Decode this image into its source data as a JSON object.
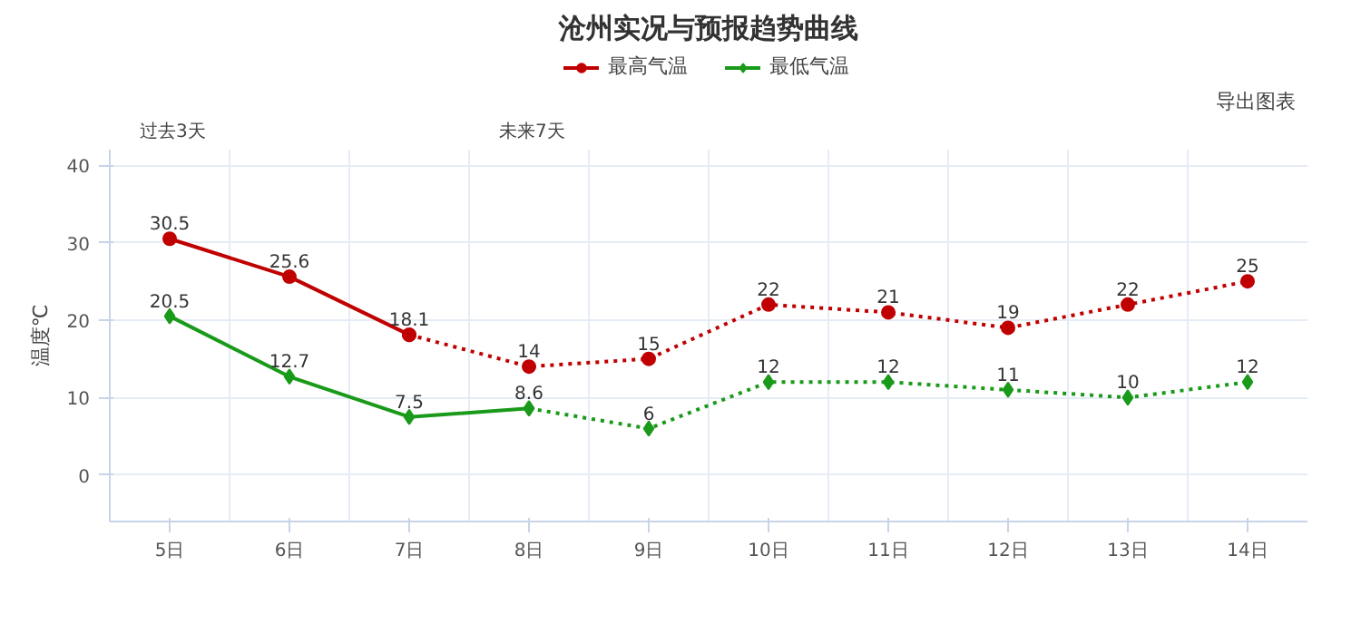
{
  "chart_data": {
    "type": "line",
    "title": "沧州实况与预报趋势曲线",
    "ylabel": "温度℃",
    "categories": [
      "5日",
      "6日",
      "7日",
      "8日",
      "9日",
      "10日",
      "11日",
      "12日",
      "13日",
      "14日"
    ],
    "series": [
      {
        "name": "最高气温",
        "color": "#c00000",
        "marker": "circle",
        "line_style": "solid",
        "values": [
          30.5,
          25.6,
          18.1,
          null,
          null,
          null,
          null,
          null,
          null,
          null
        ]
      },
      {
        "color": "#c00000",
        "marker": "circle",
        "line_style": "dotted",
        "values": [
          null,
          null,
          18.1,
          14,
          15,
          22,
          21,
          19,
          22,
          25
        ],
        "value_labels": [
          null,
          null,
          null,
          "14",
          "15",
          "22",
          "21",
          "19",
          "22",
          "25"
        ]
      },
      {
        "name": "最低气温",
        "color": "#1a9a1a",
        "marker": "diamond",
        "line_style": "solid",
        "values": [
          20.5,
          12.7,
          7.5,
          8.6,
          null,
          null,
          null,
          null,
          null,
          null
        ]
      },
      {
        "color": "#1a9a1a",
        "marker": "diamond",
        "line_style": "dotted",
        "values": [
          null,
          null,
          null,
          8.6,
          6,
          12,
          12,
          11,
          10,
          12
        ],
        "value_labels": [
          null,
          null,
          null,
          null,
          "6",
          "12",
          "12",
          "11",
          "10",
          "12"
        ]
      }
    ],
    "ylim": [
      -6,
      42
    ],
    "yticks": [
      0,
      10,
      20,
      30,
      40
    ],
    "grid": true,
    "legend": "top",
    "data_labels": true,
    "annotations": [
      "过去3天",
      "未来7天",
      "导出图表"
    ]
  }
}
